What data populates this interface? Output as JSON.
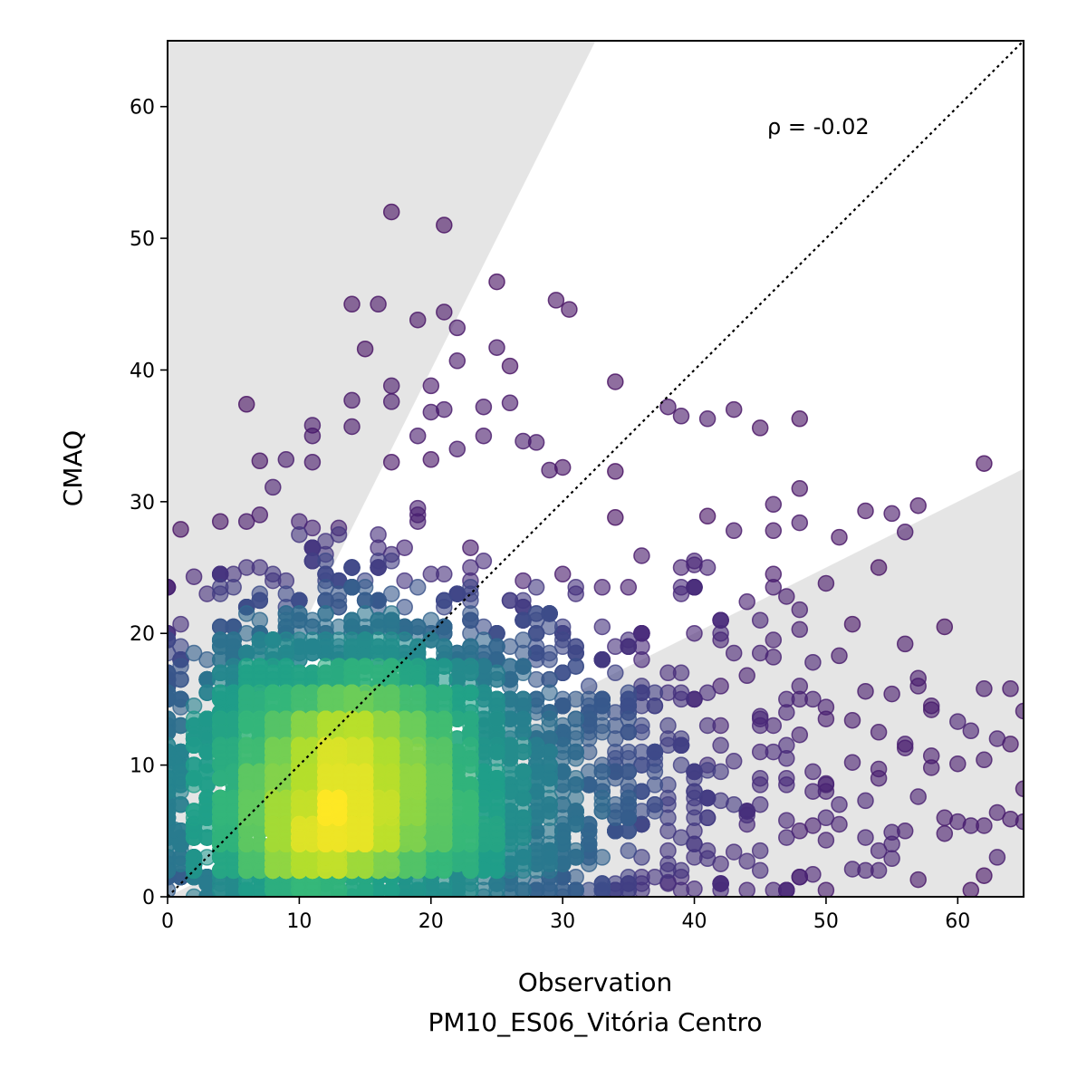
{
  "chart_data": {
    "type": "scatter",
    "xlabel": "Observation",
    "xlabel2": "PM10_ES06_Vitória Centro",
    "ylabel": "CMAQ",
    "xlim": [
      0,
      65
    ],
    "ylim": [
      0,
      65
    ],
    "xticks": [
      "0",
      "10",
      "20",
      "30",
      "40",
      "50",
      "60"
    ],
    "yticks": [
      "0",
      "10",
      "20",
      "30",
      "40",
      "50",
      "60"
    ],
    "annotation": "ρ = -0.02",
    "grid": false,
    "reference_line": {
      "type": "1:1",
      "style": "dotted",
      "color": "#000000"
    },
    "shaded_regions": [
      {
        "type": "factor-of-2",
        "upper_slope": 2,
        "lower_slope": 0.5,
        "color": "#e5e5e5"
      }
    ],
    "colormap": "viridis",
    "point_color_low": "#440154",
    "point_color_high": "#fde725",
    "density_peak": {
      "x": 12,
      "y": 11
    },
    "outlier_points": [
      [
        17,
        52
      ],
      [
        21,
        51
      ],
      [
        14,
        45
      ],
      [
        16,
        45
      ],
      [
        25,
        46.7
      ],
      [
        29.5,
        45.3
      ],
      [
        30.5,
        44.6
      ],
      [
        21,
        44.4
      ],
      [
        22,
        43.2
      ],
      [
        19,
        43.8
      ],
      [
        15,
        41.6
      ],
      [
        25,
        41.7
      ],
      [
        26,
        40.3
      ],
      [
        22,
        40.7
      ],
      [
        17,
        38.8
      ],
      [
        34,
        39.1
      ],
      [
        20,
        38.8
      ],
      [
        6,
        37.4
      ],
      [
        14,
        37.7
      ],
      [
        17,
        37.6
      ],
      [
        20,
        36.8
      ],
      [
        21,
        37
      ],
      [
        24,
        37.2
      ],
      [
        26,
        37.5
      ],
      [
        38,
        37.2
      ],
      [
        43,
        37
      ],
      [
        39,
        36.5
      ],
      [
        41,
        36.3
      ],
      [
        45,
        35.6
      ],
      [
        48,
        36.3
      ],
      [
        11,
        35.8
      ],
      [
        14,
        35.7
      ],
      [
        19,
        35
      ],
      [
        22,
        34
      ],
      [
        24,
        35
      ],
      [
        27,
        34.6
      ],
      [
        28,
        34.5
      ],
      [
        29,
        32.4
      ],
      [
        30,
        32.6
      ],
      [
        34,
        32.3
      ],
      [
        62,
        32.9
      ],
      [
        17,
        33
      ],
      [
        20,
        33.2
      ],
      [
        9,
        33.2
      ],
      [
        7,
        33.1
      ],
      [
        8,
        31.1
      ],
      [
        46,
        29.8
      ],
      [
        48,
        31
      ],
      [
        53,
        29.3
      ],
      [
        55,
        29.1
      ],
      [
        57,
        29.7
      ],
      [
        41,
        28.9
      ],
      [
        43,
        27.8
      ],
      [
        46,
        27.8
      ],
      [
        48,
        28.4
      ],
      [
        51,
        27.3
      ],
      [
        56,
        27.7
      ],
      [
        34,
        28.8
      ],
      [
        36,
        25.9
      ],
      [
        39,
        25
      ],
      [
        40,
        25.2
      ],
      [
        44,
        22.4
      ],
      [
        46,
        23.5
      ],
      [
        47,
        22.8
      ],
      [
        48,
        21.8
      ],
      [
        50,
        23.8
      ],
      [
        54,
        25
      ],
      [
        52,
        20.7
      ],
      [
        56,
        19.2
      ],
      [
        59,
        20.5
      ],
      [
        2,
        24.3
      ],
      [
        4,
        28.5
      ],
      [
        1,
        27.9
      ],
      [
        1,
        20.7
      ],
      [
        1,
        19
      ],
      [
        44,
        16.8
      ],
      [
        48,
        20.3
      ],
      [
        46,
        18.2
      ],
      [
        49,
        17.8
      ],
      [
        51,
        18.3
      ],
      [
        53,
        15.6
      ],
      [
        55,
        15.4
      ],
      [
        57,
        16.6
      ],
      [
        58,
        14.2
      ],
      [
        60,
        13.3
      ],
      [
        61,
        12.6
      ],
      [
        62,
        15.8
      ],
      [
        64,
        15.8
      ],
      [
        65,
        14.1
      ],
      [
        63,
        12
      ],
      [
        64,
        11.6
      ],
      [
        62,
        10.4
      ],
      [
        60,
        10.1
      ],
      [
        58,
        9.8
      ],
      [
        56,
        11.3
      ],
      [
        54,
        9.7
      ],
      [
        52,
        10.2
      ],
      [
        50,
        8.6
      ],
      [
        47,
        9
      ],
      [
        45,
        8.5
      ],
      [
        43,
        10.3
      ],
      [
        42,
        7.3
      ],
      [
        40,
        6.8
      ],
      [
        41,
        9.6
      ],
      [
        44,
        6.2
      ],
      [
        47,
        5.8
      ],
      [
        49,
        5.4
      ],
      [
        50,
        4.3
      ],
      [
        51,
        5.5
      ],
      [
        53,
        7.3
      ],
      [
        55,
        4.9
      ],
      [
        56,
        5
      ],
      [
        57,
        7.6
      ],
      [
        59,
        4.8
      ],
      [
        60,
        5.7
      ],
      [
        61,
        5.4
      ],
      [
        62,
        5.4
      ],
      [
        63,
        6.4
      ],
      [
        64,
        5.9
      ],
      [
        65,
        5.7
      ],
      [
        65,
        8.2
      ],
      [
        55,
        2.9
      ],
      [
        52,
        2.1
      ],
      [
        49,
        1.7
      ],
      [
        48,
        1.5
      ],
      [
        44,
        2.7
      ],
      [
        43,
        3.4
      ],
      [
        41,
        2.9
      ],
      [
        40,
        0.6
      ],
      [
        38,
        1.1
      ],
      [
        57,
        1.3
      ],
      [
        62,
        1.6
      ],
      [
        59,
        6
      ],
      [
        46,
        11
      ],
      [
        45,
        13.7
      ],
      [
        48,
        12.3
      ],
      [
        50,
        14.4
      ],
      [
        52,
        13.4
      ],
      [
        54,
        12.5
      ],
      [
        56,
        11.6
      ],
      [
        58,
        10.7
      ],
      [
        0.5,
        5.1
      ],
      [
        1,
        8.8
      ],
      [
        0.5,
        10.3
      ],
      [
        1,
        14.4
      ],
      [
        1,
        16.5
      ],
      [
        2,
        12.3
      ],
      [
        2,
        2.4
      ],
      [
        1,
        1.8
      ],
      [
        3,
        1
      ]
    ],
    "density_samples": 5500
  }
}
